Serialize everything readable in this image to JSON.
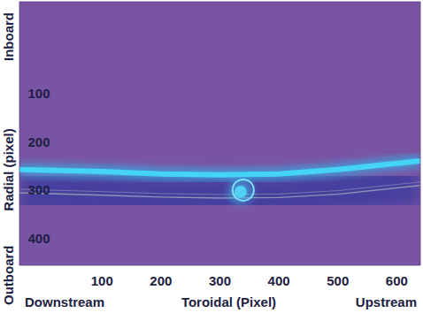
{
  "chart_data": {
    "type": "image",
    "x_label": [
      "Downstream",
      "Toroidal (Pixel)",
      "Upstream"
    ],
    "y_label": [
      "Outboard",
      "Radial (pixel)",
      "Inboard"
    ],
    "xlim": [
      -40,
      640
    ],
    "ylim": [
      -90,
      455
    ],
    "xticks": [
      100,
      200,
      300,
      400,
      500,
      600
    ],
    "yticks": [
      100,
      200,
      300,
      400
    ],
    "grid": false,
    "edge": {
      "x": [
        -40,
        100,
        200,
        300,
        400,
        500,
        640
      ],
      "y": [
        257,
        261,
        266,
        268,
        266,
        257,
        239
      ]
    },
    "limit_line": {
      "x": [
        -40,
        100,
        200,
        300,
        400,
        500,
        640
      ],
      "y": [
        305,
        310,
        314,
        316,
        315,
        308,
        290
      ]
    },
    "spot": {
      "x": 335,
      "y": 303
    }
  }
}
